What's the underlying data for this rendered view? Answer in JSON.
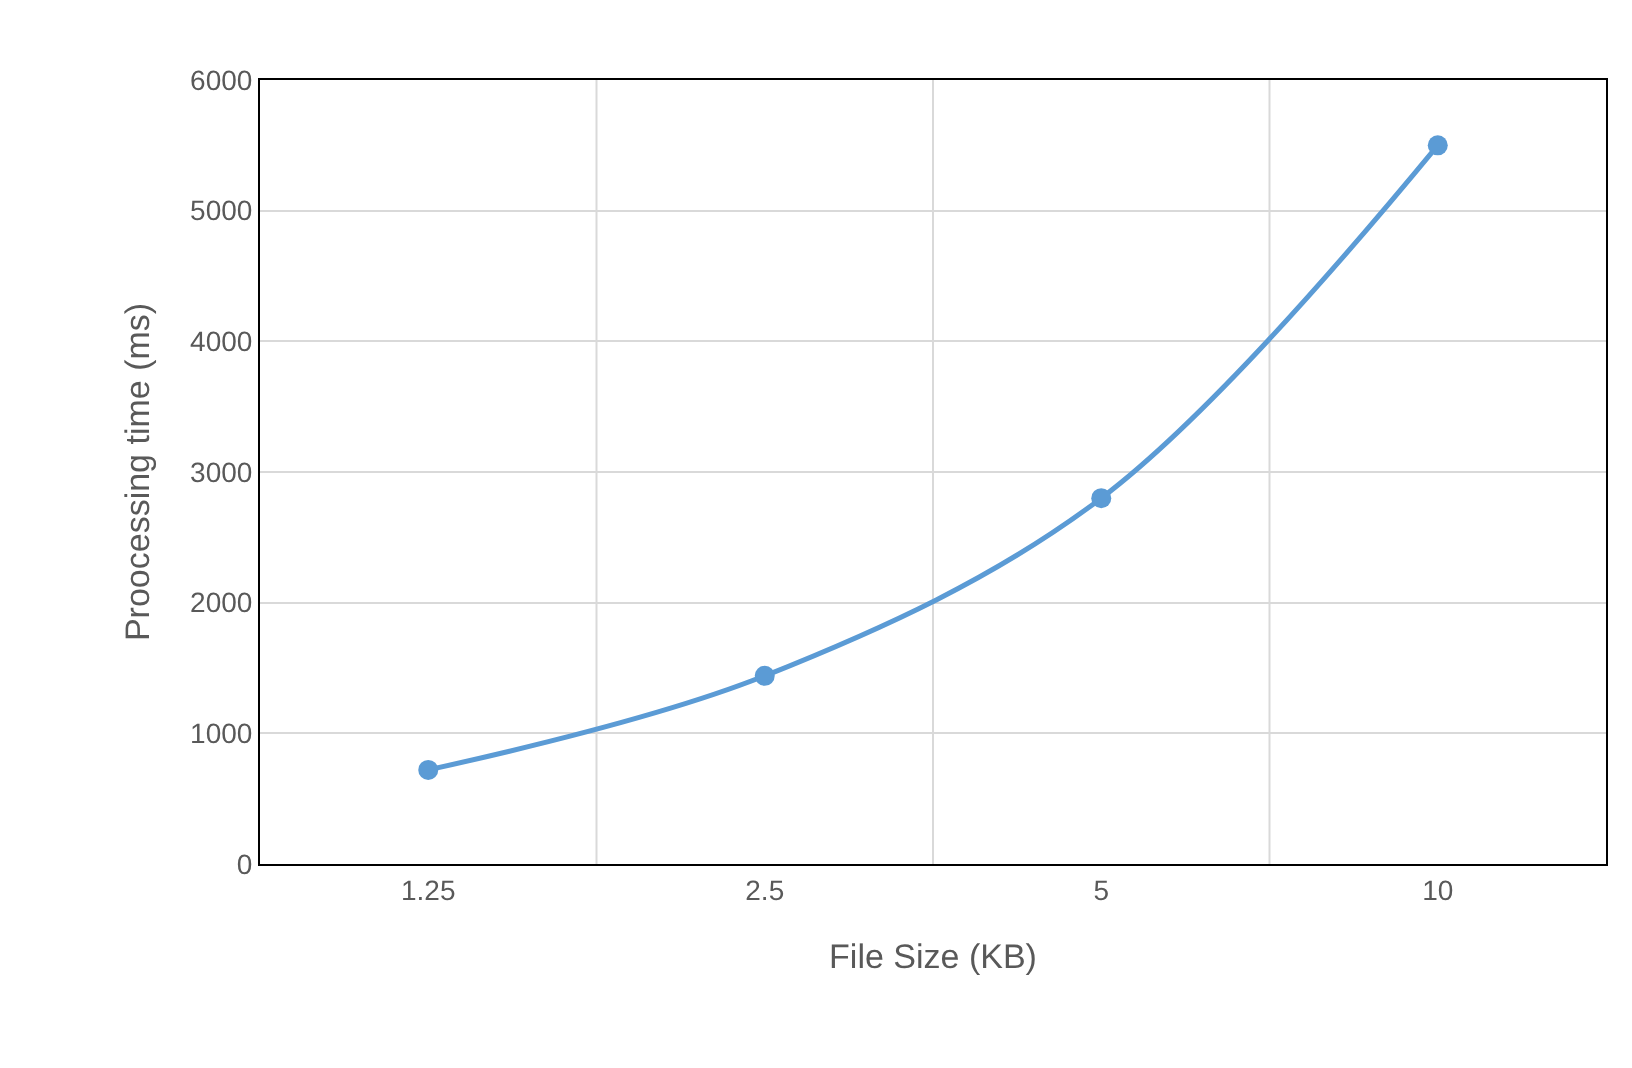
{
  "chart_data": {
    "type": "line",
    "xlabel": "File Size (KB)",
    "ylabel": "Proocessing time (ms)",
    "categories": [
      "1.25",
      "2.5",
      "5",
      "10"
    ],
    "series": [
      {
        "color": "#5b9bd5",
        "values": [
          720,
          1440,
          2800,
          5500
        ]
      }
    ],
    "ylim": [
      0,
      6000
    ],
    "yticks": [
      0,
      1000,
      2000,
      3000,
      4000,
      5000,
      6000
    ],
    "grid": true,
    "marker": "circle",
    "line_style": "solid",
    "legend": false
  }
}
